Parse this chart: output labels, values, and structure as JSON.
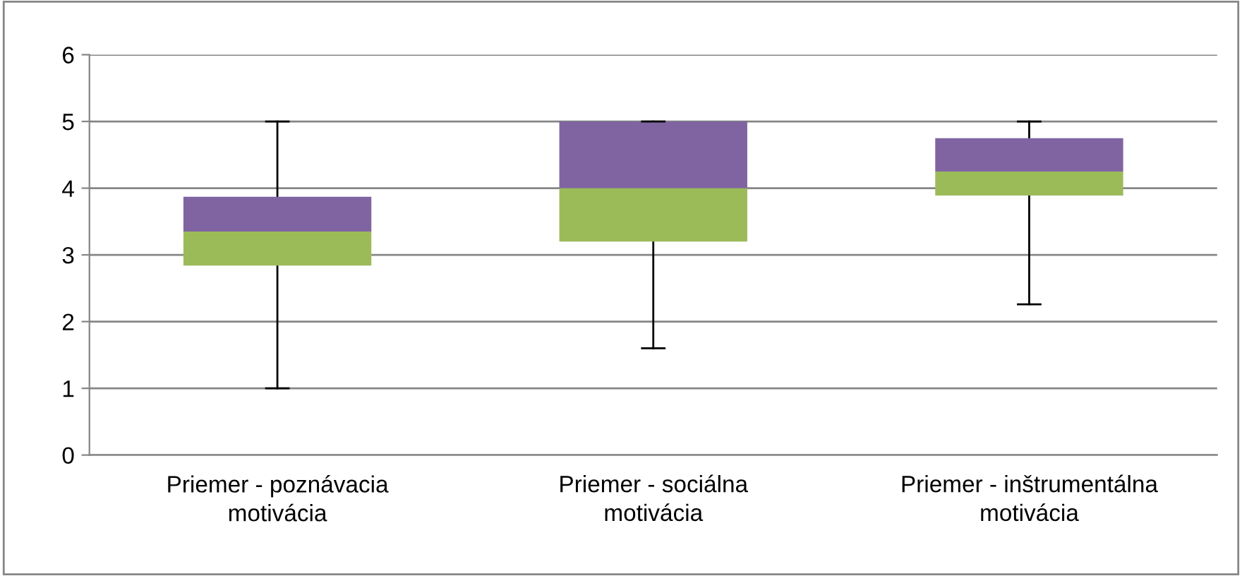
{
  "chart_data": {
    "type": "box",
    "categories": [
      "Priemer - poznávacia motivácia",
      "Priemer - sociálna motivácia",
      "Priemer - inštrumentálna motivácia"
    ],
    "series": [
      {
        "color": "#8064a2",
        "colors": [
          "#9bbb59",
          "#9bbb59",
          "#9bbb59"
        ],
        "boxes": [
          {
            "low": 1.0,
            "q1": 2.84,
            "median": 3.35,
            "q3": 3.87,
            "high": 5.0
          },
          {
            "low": 1.6,
            "q1": 3.2,
            "median": 4.0,
            "q3": 5.0,
            "high": 5.0
          },
          {
            "low": 2.26,
            "q1": 3.89,
            "median": 4.25,
            "q3": 4.75,
            "high": 5.0
          }
        ]
      }
    ],
    "ylim": [
      0,
      6
    ],
    "yticks": [
      0,
      1,
      2,
      3,
      4,
      5,
      6
    ],
    "grid": "y"
  }
}
